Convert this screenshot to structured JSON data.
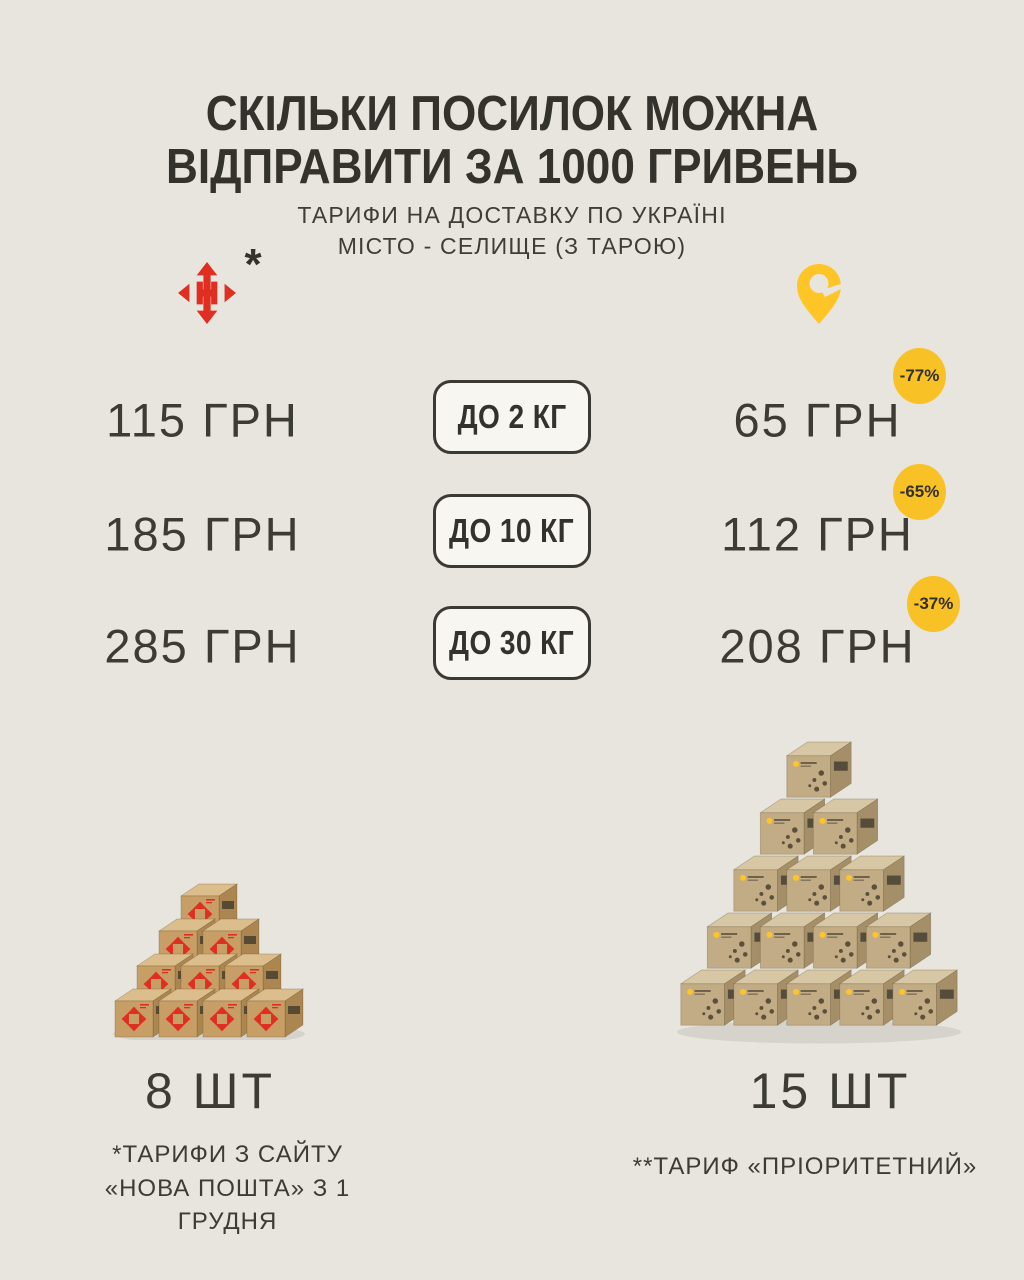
{
  "page": {
    "title_lines": [
      "СКІЛЬКИ ПОСИЛОК МОЖНА",
      "ВІДПРАВИТИ ЗА 1000 ГРИВЕНЬ"
    ],
    "subtitle_lines": [
      "ТАРИФИ НА ДОСТАВКУ ПО УКРАЇНІ",
      "МІСТО - СЕЛИЩЕ (З ТАРОЮ)"
    ]
  },
  "brands": {
    "left": {
      "name": "Нова Пошта",
      "icon": "nova-poshta-arrows-icon",
      "footnote_mark": "*"
    },
    "right": {
      "name": "Укрпошта",
      "icon": "ukrposhta-pin-icon"
    }
  },
  "rows": [
    {
      "left_price": "115 ГРН",
      "weight_label": "ДО 2 КГ",
      "right_price": "65 ГРН",
      "discount": "-77%"
    },
    {
      "left_price": "185 ГРН",
      "weight_label": "ДО 10 КГ",
      "right_price": "112 ГРН",
      "discount": "-65%"
    },
    {
      "left_price": "285 ГРН",
      "weight_label": "ДО 30 КГ",
      "right_price": "208 ГРН",
      "discount": "-37%"
    }
  ],
  "results": {
    "left_count": "8 ШТ",
    "right_count": "15 ШТ"
  },
  "footnotes": {
    "left_lines": [
      "*ТАРИФИ З САЙТУ",
      "«НОВА ПОШТА» З 1 ГРУДНЯ"
    ],
    "right": "**ТАРИФ «ПРІОРИТЕТНИЙ»"
  },
  "stacks": {
    "left": {
      "kind": "nova-poshta",
      "rows_top_to_bottom": [
        1,
        2,
        3,
        4
      ]
    },
    "right": {
      "kind": "ukrposhta",
      "rows_top_to_bottom": [
        1,
        2,
        3,
        4,
        5
      ]
    }
  },
  "colors": {
    "background": "#E7E5DD",
    "text_dark": "#37362F",
    "pill_background": "#F7F6F1",
    "pill_border": "#3A3933",
    "badge_yellow": "#F8C125",
    "nova_poshta_red": "#E02E21",
    "ukrposhta_yellow": "#FFC425",
    "box_cardboard": "#C8A977"
  },
  "chart_data": {
    "type": "table",
    "title": "СКІЛЬКИ ПОСИЛОК МОЖНА ВІДПРАВИТИ ЗА 1000 ГРИВЕНЬ",
    "subtitle": "ТАРИФИ НА ДОСТАВКУ ПО УКРАЇНІ, МІСТО - СЕЛИЩЕ (З ТАРОЮ)",
    "categories": [
      "ДО 2 КГ",
      "ДО 10 КГ",
      "ДО 30 КГ"
    ],
    "currency": "ГРН",
    "series": [
      {
        "name": "Нова Пошта (тарифи з сайту з 1 грудня)",
        "values": [
          115,
          185,
          285
        ],
        "parcels_per_1000_uah": 8
      },
      {
        "name": "Укрпошта (тариф «Пріоритетний»)",
        "values": [
          65,
          112,
          208
        ],
        "parcels_per_1000_uah": 15
      }
    ],
    "discounts_vs_left": [
      "-77%",
      "-65%",
      "-37%"
    ]
  }
}
